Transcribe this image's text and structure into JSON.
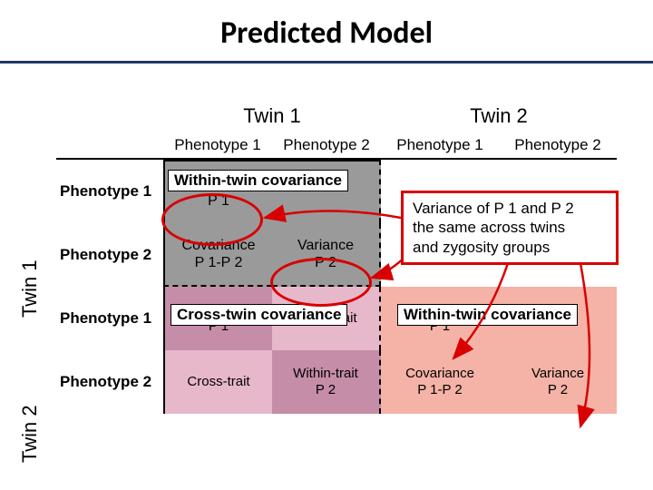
{
  "title": "Predicted Model",
  "groups": {
    "twin1": "Twin 1",
    "twin2": "Twin 2"
  },
  "cols": {
    "p1": "Phenotype 1",
    "p2": "Phenotype 2"
  },
  "rows": {
    "p1": "Phenotype 1",
    "p2": "Phenotype 2"
  },
  "labels": {
    "within": "Within-twin covariance",
    "cross": "Cross-twin covariance"
  },
  "cells": {
    "t1p1_t1p1": "Variance\nP 1",
    "t1p1_t1p2": "",
    "t1p2_t1p1": "Covariance\nP 1-P 2",
    "t1p2_t1p2": "Variance\nP 2",
    "t2p1_t1p1": "Within-trait\nP 1",
    "t2p1_t1p2": "Cross-trait",
    "t2p2_t1p1": "Cross-trait",
    "t2p2_t1p2": "Within-trait\nP 2",
    "t2p1_t2p1": "Variance\nP 1",
    "t2p1_t2p2": "",
    "t2p2_t2p1": "Covariance\nP 1-P 2",
    "t2p2_t2p2": "Variance\nP 2"
  },
  "callout": "Variance of P 1 and P 2\nthe same across twins\nand zygosity groups",
  "colors": {
    "underline": "#1f3864",
    "gray": "#9a9a9a",
    "pink": "#c58da8",
    "pink2": "#e7b8c9",
    "salmon": "#f4b3a6",
    "red": "#d80000"
  }
}
